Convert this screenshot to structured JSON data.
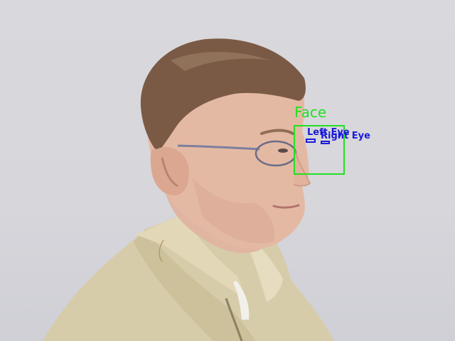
{
  "image": {
    "background_color": "#d8d8dc",
    "subject": "man-side-profile-with-glasses"
  },
  "detections": {
    "face": {
      "label": "Face",
      "color": "#22e022"
    },
    "left_eye": {
      "label": "Left Eye",
      "color": "#1b1bd8"
    },
    "right_eye": {
      "label": "Right Eye",
      "color": "#1b1bd8"
    }
  }
}
